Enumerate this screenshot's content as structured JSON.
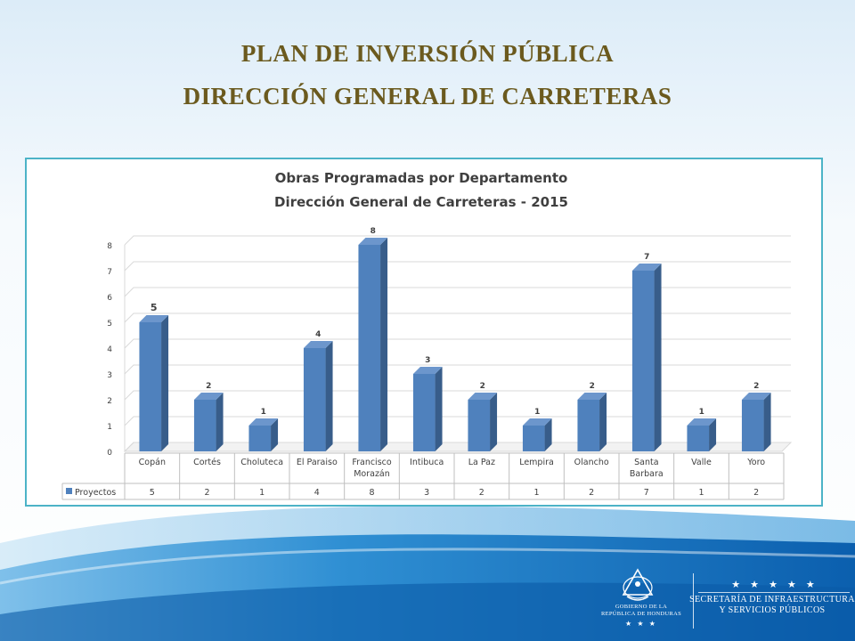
{
  "slide": {
    "title_line1": "PLAN DE INVERSIÓN PÚBLICA",
    "title_line2": "DIRECCIÓN GENERAL DE CARRETERAS"
  },
  "colors": {
    "title": "#6b5a1e",
    "bar_front": "#4f81bd",
    "bar_side": "#385d8a",
    "bar_top": "#6c96cc",
    "frame": "#4cb3c7",
    "background_wave": "#2a84c8"
  },
  "chart_data": {
    "type": "bar",
    "title": "Obras Programadas por Departamento",
    "subtitle": "Dirección General de Carreteras - 2015",
    "categories": [
      [
        "Copán"
      ],
      [
        "Cortés"
      ],
      [
        "Choluteca"
      ],
      [
        "El Paraiso"
      ],
      [
        "Francisco",
        "Morazán"
      ],
      [
        "Intibuca"
      ],
      [
        "La Paz"
      ],
      [
        "Lempira"
      ],
      [
        "Olancho"
      ],
      [
        "Santa",
        "Barbara"
      ],
      [
        "Valle"
      ],
      [
        "Yoro"
      ]
    ],
    "series": [
      {
        "name": "Proyectos",
        "values": [
          5,
          2,
          1,
          4,
          8,
          3,
          2,
          1,
          2,
          7,
          1,
          2
        ]
      }
    ],
    "y_ticks": [
      0,
      1,
      2,
      3,
      4,
      5,
      6,
      7,
      8
    ],
    "ylim": [
      0,
      8
    ],
    "data_labels": true,
    "data_table": true,
    "legend": "data-table",
    "grid": true
  },
  "footer": {
    "gov_line1": "GOBIERNO DE LA",
    "gov_line2": "REPÚBLICA DE HONDURAS",
    "gov_stars": "★ ★ ★",
    "sec_stars": "★ ★ ★ ★ ★",
    "sec_line1": "SECRETARÍA DE INFRAESTRUCTURA",
    "sec_line2": "Y SERVICIOS PÚBLICOS"
  }
}
